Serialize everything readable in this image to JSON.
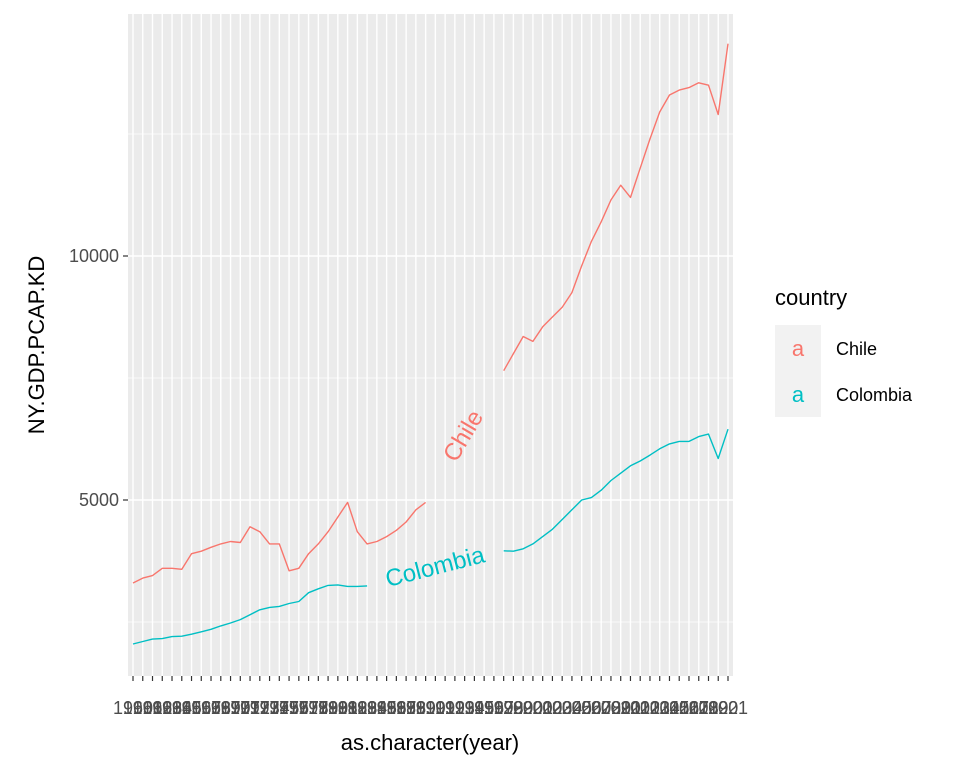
{
  "chart_data": {
    "type": "line",
    "xlabel": "as.character(year)",
    "ylabel": "NY.GDP.PCAP.KD",
    "x": [
      "1960",
      "1961",
      "1962",
      "1963",
      "1964",
      "1965",
      "1966",
      "1967",
      "1968",
      "1969",
      "1970",
      "1971",
      "1972",
      "1973",
      "1974",
      "1975",
      "1976",
      "1977",
      "1978",
      "1979",
      "1980",
      "1981",
      "1982",
      "1983",
      "1984",
      "1985",
      "1986",
      "1987",
      "1988",
      "1989",
      "1990",
      "1991",
      "1992",
      "1993",
      "1994",
      "1995",
      "1996",
      "1997",
      "1998",
      "1999",
      "2000",
      "2001",
      "2002",
      "2003",
      "2004",
      "2005",
      "2006",
      "2007",
      "2008",
      "2009",
      "2010",
      "2011",
      "2012",
      "2013",
      "2014",
      "2015",
      "2016",
      "2017",
      "2018",
      "2019",
      "2020",
      "2021"
    ],
    "y_ticks": [
      5000,
      10000
    ],
    "y_tick_labels": [
      "5000",
      "10000"
    ],
    "ylim": [
      1500,
      14500
    ],
    "grid": true,
    "legend": {
      "title": "country",
      "position": "right",
      "key_glyph": "a"
    },
    "series": [
      {
        "name": "Chile",
        "color": "#F8766D",
        "values": [
          3300,
          3400,
          3450,
          3600,
          3600,
          3580,
          3900,
          3950,
          4030,
          4100,
          4150,
          4130,
          4450,
          4350,
          4100,
          4100,
          3550,
          3600,
          3900,
          4100,
          4350,
          4650,
          4950,
          4350,
          4100,
          4150,
          4250,
          4380,
          4550,
          4800,
          4950,
          5350,
          5430,
          5720,
          6250,
          6550,
          6900,
          7300,
          7650,
          8000,
          8350,
          8250,
          8550,
          8750,
          8950,
          9250,
          9800,
          10300,
          10700,
          11150,
          11450,
          11200,
          11800,
          12400,
          12950,
          13300,
          13400,
          13450,
          13550,
          13500,
          12900,
          14350
        ],
        "label": "Chile"
      },
      {
        "name": "Colombia",
        "color": "#00BFC4",
        "values": [
          2050,
          2100,
          2150,
          2160,
          2200,
          2210,
          2250,
          2300,
          2350,
          2420,
          2480,
          2550,
          2650,
          2750,
          2800,
          2820,
          2880,
          2920,
          3100,
          3180,
          3250,
          3260,
          3230,
          3230,
          3240,
          3270,
          3320,
          3400,
          3470,
          3550,
          3650,
          3730,
          3760,
          3800,
          3890,
          3960,
          3970,
          3900,
          3960,
          3950,
          4000,
          4100,
          4250,
          4400,
          4600,
          4800,
          5000,
          5050,
          5200,
          5400,
          5550,
          5700,
          5800,
          5920,
          6050,
          6150,
          6200,
          6200,
          6300,
          6350,
          5850,
          6450
        ],
        "label": "Colombia"
      }
    ]
  }
}
